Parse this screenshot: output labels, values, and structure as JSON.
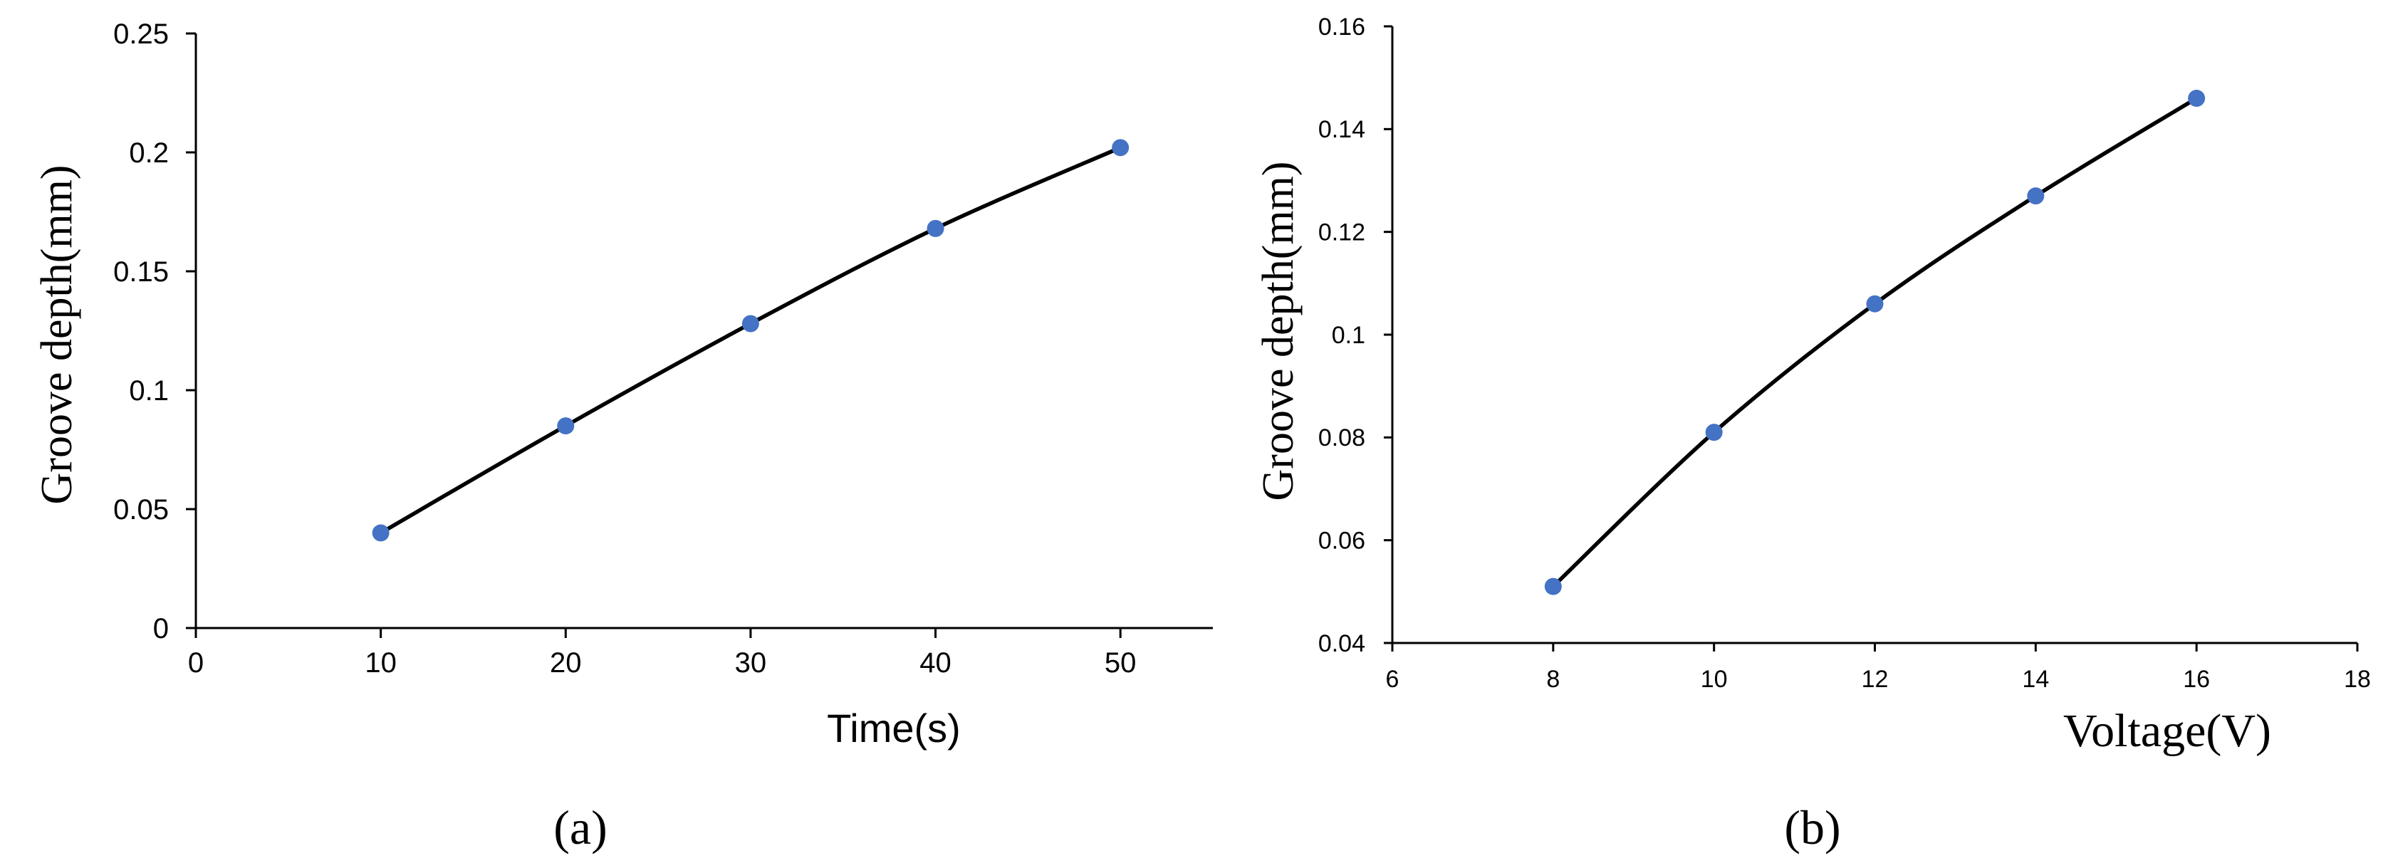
{
  "colors": {
    "marker": "#4472C4",
    "line": "#000000"
  },
  "chart_data": [
    {
      "type": "line",
      "panel": "(a)",
      "title": "",
      "xlabel": "Time(s)",
      "ylabel": "Groove depth(mm)",
      "xlim": [
        0,
        55
      ],
      "ylim": [
        0,
        0.25
      ],
      "xticks": [
        0,
        10,
        20,
        30,
        40,
        50
      ],
      "xtick_labels": [
        "0",
        "10",
        "20",
        "30",
        "40",
        "50"
      ],
      "yticks": [
        0,
        0.05,
        0.1,
        0.15,
        0.2,
        0.25
      ],
      "ytick_labels": [
        "0",
        "0.05",
        "0.1",
        "0.15",
        "0.2",
        "0.25"
      ],
      "grid": false,
      "series": [
        {
          "name": "Groove depth",
          "x": [
            10,
            20,
            30,
            40,
            50
          ],
          "y": [
            0.04,
            0.085,
            0.128,
            0.168,
            0.202
          ]
        }
      ]
    },
    {
      "type": "line",
      "panel": "(b)",
      "title": "",
      "xlabel": "Voltage(V)",
      "ylabel": "Groove depth(mm)",
      "xlim": [
        6,
        18
      ],
      "ylim": [
        0.04,
        0.16
      ],
      "xticks": [
        6,
        8,
        10,
        12,
        14,
        16,
        18
      ],
      "xtick_labels": [
        "6",
        "8",
        "10",
        "12",
        "14",
        "16",
        "18"
      ],
      "yticks": [
        0.04,
        0.06,
        0.08,
        0.1,
        0.12,
        0.14,
        0.16
      ],
      "ytick_labels": [
        "0.04",
        "0.06",
        "0.08",
        "0.1",
        "0.12",
        "0.14",
        "0.16"
      ],
      "grid": false,
      "series": [
        {
          "name": "Groove depth",
          "x": [
            8,
            10,
            12,
            14,
            16
          ],
          "y": [
            0.051,
            0.081,
            0.106,
            0.127,
            0.146
          ]
        }
      ]
    }
  ]
}
